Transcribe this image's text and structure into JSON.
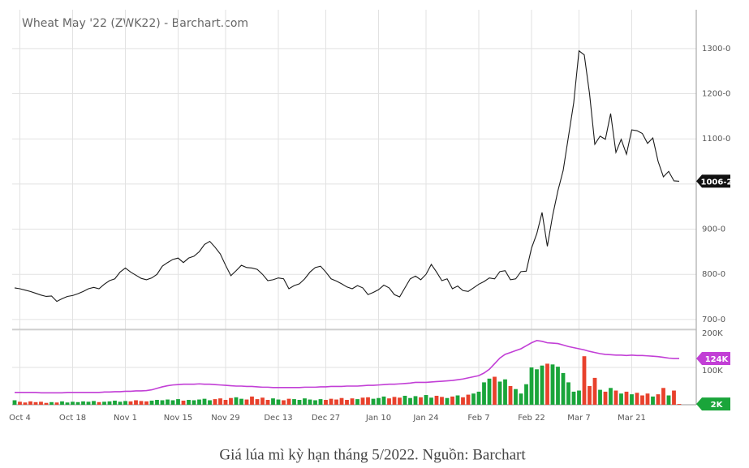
{
  "chart_data": [
    {
      "type": "line",
      "title": "Wheat May '22 (ZWK22) - Barchart.com",
      "color": "#1a1a1a",
      "values": [
        770,
        768,
        765,
        762,
        758,
        754,
        751,
        752,
        740,
        746,
        751,
        753,
        757,
        762,
        768,
        771,
        768,
        778,
        786,
        790,
        805,
        814,
        805,
        798,
        791,
        788,
        792,
        800,
        818,
        826,
        833,
        836,
        826,
        836,
        840,
        850,
        866,
        873,
        860,
        845,
        820,
        797,
        808,
        820,
        815,
        814,
        811,
        800,
        786,
        788,
        792,
        790,
        768,
        775,
        779,
        790,
        805,
        815,
        818,
        805,
        790,
        785,
        779,
        772,
        768,
        775,
        770,
        755,
        760,
        766,
        776,
        770,
        755,
        750,
        770,
        790,
        796,
        788,
        800,
        822,
        805,
        786,
        790,
        768,
        774,
        764,
        762,
        770,
        778,
        784,
        792,
        790,
        806,
        808,
        788,
        790,
        806,
        807,
        858,
        890,
        937,
        862,
        930,
        985,
        1030,
        1105,
        1180,
        1295,
        1286,
        1200,
        1088,
        1106,
        1099,
        1156,
        1070,
        1099,
        1066,
        1120,
        1118,
        1112,
        1090,
        1102,
        1050,
        1016,
        1028,
        1007,
        1006.25
      ],
      "ylim": [
        680,
        1386
      ],
      "yticks": [
        {
          "value": 700,
          "label": "700-0"
        },
        {
          "value": 800,
          "label": "800-0"
        },
        {
          "value": 900,
          "label": "900-0"
        },
        {
          "value": 1000,
          "label": "1000-0"
        },
        {
          "value": 1100,
          "label": "1100-0"
        },
        {
          "value": 1200,
          "label": "1200-0"
        },
        {
          "value": 1300,
          "label": "1300-0"
        }
      ],
      "last_price": {
        "value": 1006.25,
        "label": "1006-2"
      },
      "grid": true
    },
    {
      "type": "bar",
      "categories": [
        null,
        "Oct 4",
        null,
        null,
        null,
        null,
        null,
        null,
        null,
        null,
        null,
        "Oct 18",
        null,
        null,
        null,
        null,
        null,
        null,
        null,
        null,
        null,
        "Nov 1",
        null,
        null,
        null,
        null,
        null,
        null,
        null,
        null,
        null,
        "Nov 15",
        null,
        null,
        null,
        null,
        null,
        null,
        null,
        null,
        "Nov 29",
        null,
        null,
        null,
        null,
        null,
        null,
        null,
        null,
        null,
        "Dec 13",
        null,
        null,
        null,
        null,
        null,
        null,
        null,
        null,
        "Dec 27",
        null,
        null,
        null,
        null,
        null,
        null,
        null,
        null,
        null,
        "Jan 10",
        null,
        null,
        null,
        null,
        null,
        null,
        null,
        null,
        "Jan 24",
        null,
        null,
        null,
        null,
        null,
        null,
        null,
        null,
        null,
        "Feb 7",
        null,
        null,
        null,
        null,
        null,
        null,
        null,
        null,
        null,
        "Feb 22",
        null,
        null,
        null,
        null,
        null,
        null,
        null,
        null,
        "Mar 7",
        null,
        null,
        null,
        null,
        null,
        null,
        null,
        null,
        null,
        "Mar 21",
        null,
        null,
        null,
        null,
        null,
        null,
        null,
        null,
        null
      ],
      "values": [
        12,
        8,
        6,
        9,
        7,
        8,
        5,
        7,
        6,
        9,
        6,
        8,
        7,
        9,
        8,
        10,
        7,
        8,
        9,
        11,
        8,
        10,
        9,
        12,
        10,
        9,
        11,
        13,
        12,
        14,
        12,
        15,
        11,
        13,
        12,
        14,
        16,
        12,
        15,
        17,
        13,
        18,
        20,
        16,
        14,
        22,
        15,
        19,
        13,
        17,
        14,
        12,
        16,
        15,
        13,
        17,
        14,
        12,
        15,
        13,
        16,
        14,
        18,
        13,
        17,
        15,
        19,
        20,
        16,
        18,
        22,
        17,
        21,
        19,
        24,
        18,
        23,
        20,
        26,
        19,
        24,
        21,
        18,
        22,
        25,
        20,
        27,
        30,
        35,
        60,
        70,
        75,
        62,
        68,
        50,
        42,
        30,
        55,
        100,
        95,
        105,
        110,
        108,
        102,
        85,
        60,
        35,
        38,
        130,
        50,
        72,
        40,
        35,
        45,
        38,
        30,
        35,
        28,
        32,
        25,
        30,
        22,
        28,
        45,
        25,
        38,
        2
      ],
      "up_color": "#1aa53a",
      "down_color": "#e8412c",
      "line": {
        "color": "#c23fd6",
        "values": [
          33,
          33,
          33,
          33,
          33,
          32,
          32,
          32,
          32,
          32,
          33,
          33,
          33,
          33,
          33,
          33,
          33,
          34,
          34,
          35,
          35,
          36,
          36,
          37,
          37,
          38,
          40,
          44,
          48,
          51,
          53,
          54,
          55,
          55,
          55,
          56,
          55,
          55,
          54,
          53,
          52,
          51,
          50,
          50,
          49,
          49,
          48,
          47,
          47,
          46,
          46,
          46,
          46,
          46,
          46,
          47,
          47,
          47,
          48,
          48,
          49,
          49,
          49,
          50,
          50,
          50,
          51,
          52,
          52,
          53,
          54,
          55,
          55,
          56,
          57,
          58,
          60,
          60,
          60,
          61,
          62,
          63,
          64,
          65,
          67,
          69,
          72,
          75,
          78,
          85,
          95,
          110,
          125,
          135,
          140,
          145,
          150,
          158,
          166,
          172,
          170,
          166,
          165,
          164,
          160,
          156,
          153,
          150,
          147,
          143,
          140,
          137,
          135,
          134,
          133,
          133,
          132,
          133,
          132,
          132,
          131,
          130,
          129,
          127,
          125,
          124,
          124
        ]
      },
      "ylim": [
        0,
        200
      ],
      "yticks": [
        {
          "value": 100,
          "label": "100K"
        },
        {
          "value": 200,
          "label": "200K"
        }
      ],
      "line_tag": {
        "value": 124,
        "label": "124K"
      },
      "bar_tag": {
        "value": 2,
        "label": "2K"
      },
      "grid": true
    }
  ],
  "caption": "Giá lúa mì kỳ hạn tháng 5/2022. Nguồn: Barchart"
}
